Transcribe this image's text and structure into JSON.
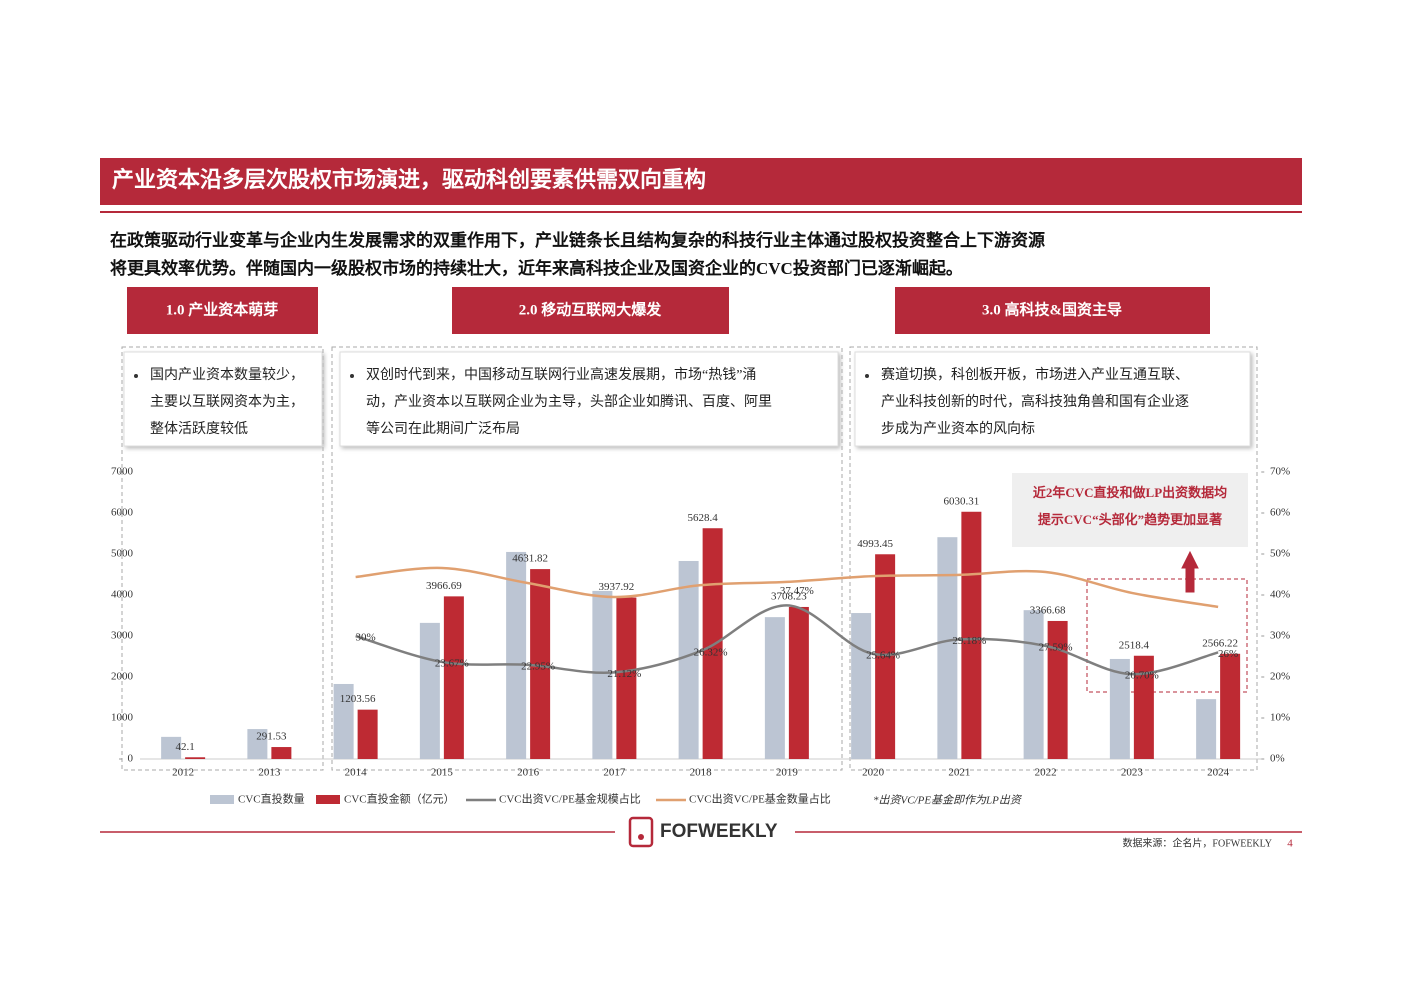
{
  "slide": {
    "title": "产业资本沿多层次股权市场演进，驱动科创要素供需双向重构",
    "intro": [
      "在政策驱动行业变革与企业内生发展需求的双重作用下，产业链条长且结构复杂的科技行业主体通过股权投资整合上下游资源",
      "将更具效率优势。伴随国内一级股权市场的持续壮大，近年来高科技企业及国资企业的CVC投资部门已逐渐崛起。"
    ],
    "phases": [
      {
        "label": "1.0  产业资本萌芽",
        "bullet": [
          "国内产业资本数量较少，",
          "主要以互联网资本为主，",
          "整体活跃度较低"
        ]
      },
      {
        "label": "2.0  移动互联网大爆发",
        "bullet": [
          "双创时代到来，中国移动互联网行业高速发展期，市场“热钱”涌",
          "动，产业资本以互联网企业为主导，头部企业如腾讯、百度、阿里",
          "等公司在此期间广泛布局"
        ]
      },
      {
        "label": "3.0  高科技&国资主导",
        "bullet": [
          "赛道切换，科创板开板，市场进入产业互通互联、",
          "产业科技创新的时代，高科技独角兽和国有企业逐",
          "步成为产业资本的风向标"
        ]
      }
    ],
    "logo": "FOFWEEKLY",
    "source": "数据来源：企名片，FOFWEEKLY",
    "page": "4"
  },
  "chart_data": {
    "type": "bar",
    "categories": [
      "2012",
      "2013",
      "2014",
      "2015",
      "2016",
      "2017",
      "2018",
      "2019",
      "2020",
      "2021",
      "2022",
      "2023",
      "2024"
    ],
    "series": [
      {
        "name": "CVC直投数量",
        "type": "bar",
        "color": "#bcc5d3",
        "values": [
          540,
          730,
          1830,
          3320,
          5050,
          4100,
          4830,
          3460,
          3560,
          5410,
          3630,
          2440,
          1460
        ]
      },
      {
        "name": "CVC直投金额（亿元）",
        "type": "bar",
        "color": "#be2a33",
        "values": [
          42.1,
          291.53,
          1203.56,
          3966.69,
          4631.82,
          3937.92,
          5628.4,
          3708.23,
          4993.45,
          6030.31,
          3366.68,
          2518.4,
          2566.22
        ]
      },
      {
        "name": "CVC出资VC/PE基金规模占比",
        "type": "line",
        "axis": "y2",
        "color": "#7f7f7f",
        "values": [
          null,
          null,
          30,
          23.67,
          22.95,
          21.12,
          26.32,
          37.47,
          25.64,
          29.18,
          27.59,
          20.7,
          26
        ],
        "value_labels": [
          null,
          null,
          "30%",
          "23.67%",
          "22.95%",
          "21.12%",
          "26.32%",
          "37.47%",
          "25.64%",
          "29.18%",
          "27.59%",
          "20.70%",
          "26%"
        ]
      },
      {
        "name": "CVC出资VC/PE基金数量占比",
        "type": "line",
        "axis": "y2",
        "color": "#e0a070",
        "values": [
          null,
          null,
          44.4,
          46.6,
          42.9,
          39.5,
          42.4,
          43.2,
          44.6,
          44.9,
          45.6,
          40.5,
          37.1
        ]
      }
    ],
    "ylim": [
      0,
      7000
    ],
    "yticks": [
      0,
      1000,
      2000,
      3000,
      4000,
      5000,
      6000,
      7000
    ],
    "y2lim": [
      0,
      70
    ],
    "y2ticks": [
      {
        "value": 0,
        "label": "0%"
      },
      {
        "value": 10,
        "label": "10%"
      },
      {
        "value": 20,
        "label": "20%"
      },
      {
        "value": 30,
        "label": "30%"
      },
      {
        "value": 40,
        "label": "40%"
      },
      {
        "value": 50,
        "label": "50%"
      },
      {
        "value": 60,
        "label": "60%"
      },
      {
        "value": 70,
        "label": "70%"
      }
    ],
    "annotation": [
      "近2年CVC直投和做LP出资数据均",
      "提示CVC“头部化”趋势更加显著"
    ],
    "note": "*出资VC/PE基金即作为LP出资",
    "grid": false
  }
}
